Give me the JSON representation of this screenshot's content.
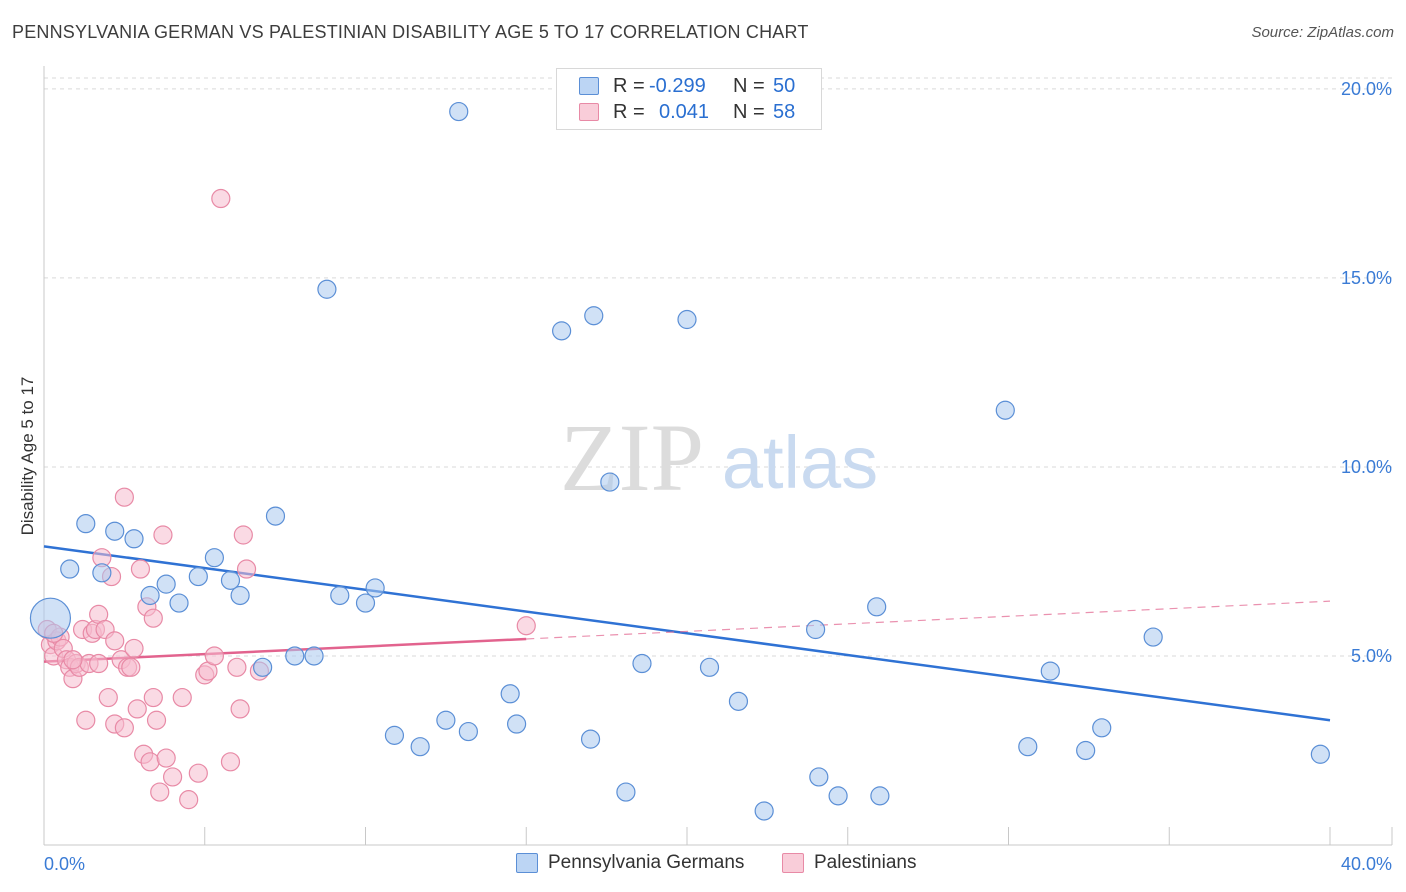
{
  "header": {
    "title": "PENNSYLVANIA GERMAN VS PALESTINIAN DISABILITY AGE 5 TO 17 CORRELATION CHART",
    "source": "Source: ZipAtlas.com"
  },
  "watermark": {
    "zip": "ZIP",
    "atlas": "atlas"
  },
  "stats_legend": {
    "rows": [
      {
        "r_label": "R =",
        "r_value": "-0.299",
        "n_label": "N =",
        "n_value": "50"
      },
      {
        "r_label": "R =",
        "r_value": "0.041",
        "n_label": "N =",
        "n_value": "58"
      }
    ]
  },
  "bottom_legend": {
    "items": [
      {
        "label": "Pennsylvania Germans"
      },
      {
        "label": "Palestinians"
      }
    ]
  },
  "colors": {
    "blue_fill": "#a9c9ef",
    "blue_stroke": "#5b8fd6",
    "blue_line": "#2f72d4",
    "pink_fill": "#f6bccd",
    "pink_stroke": "#e88aa6",
    "pink_line": "#e2638e",
    "grid": "#d9d9d9",
    "axis_text": "#3a7bd5"
  },
  "chart_data": {
    "type": "scatter",
    "title": "PENNSYLVANIA GERMAN VS PALESTINIAN DISABILITY AGE 5 TO 17 CORRELATION CHART",
    "xlabel": "",
    "ylabel": "Disability Age 5 to 17",
    "xlim": [
      0,
      40
    ],
    "ylim": [
      0,
      20.5
    ],
    "x_tick_labels": [
      "0.0%",
      "40.0%"
    ],
    "y_ticks": [
      5,
      10,
      15,
      20
    ],
    "y_tick_labels": [
      "5.0%",
      "10.0%",
      "15.0%",
      "20.0%"
    ],
    "grid": "horizontal dashed",
    "legend_position": "top-center",
    "series": [
      {
        "name": "Pennsylvania Germans",
        "color": "#5b8fd6",
        "points": [
          [
            0.2,
            6.0
          ],
          [
            0.8,
            7.3
          ],
          [
            1.3,
            8.5
          ],
          [
            2.2,
            8.3
          ],
          [
            1.8,
            7.2
          ],
          [
            2.8,
            8.1
          ],
          [
            3.3,
            6.6
          ],
          [
            3.8,
            6.9
          ],
          [
            4.2,
            6.4
          ],
          [
            4.8,
            7.1
          ],
          [
            5.3,
            7.6
          ],
          [
            5.8,
            7.0
          ],
          [
            6.1,
            6.6
          ],
          [
            7.2,
            8.7
          ],
          [
            6.8,
            4.7
          ],
          [
            7.8,
            5.0
          ],
          [
            8.4,
            5.0
          ],
          [
            8.8,
            14.7
          ],
          [
            9.2,
            6.6
          ],
          [
            10.0,
            6.4
          ],
          [
            10.3,
            6.8
          ],
          [
            10.9,
            2.9
          ],
          [
            11.7,
            2.6
          ],
          [
            12.5,
            3.3
          ],
          [
            12.9,
            19.4
          ],
          [
            13.2,
            3.0
          ],
          [
            14.5,
            4.0
          ],
          [
            14.7,
            3.2
          ],
          [
            16.1,
            13.6
          ],
          [
            17.0,
            2.8
          ],
          [
            17.1,
            14.0
          ],
          [
            17.6,
            9.6
          ],
          [
            18.1,
            1.4
          ],
          [
            18.6,
            4.8
          ],
          [
            20.0,
            13.9
          ],
          [
            20.7,
            4.7
          ],
          [
            21.6,
            3.8
          ],
          [
            22.4,
            0.9
          ],
          [
            24.0,
            5.7
          ],
          [
            24.1,
            1.8
          ],
          [
            24.7,
            1.3
          ],
          [
            25.9,
            6.3
          ],
          [
            26.0,
            1.3
          ],
          [
            29.9,
            11.5
          ],
          [
            30.6,
            2.6
          ],
          [
            31.3,
            4.6
          ],
          [
            32.4,
            2.5
          ],
          [
            32.9,
            3.1
          ],
          [
            34.5,
            5.5
          ],
          [
            39.7,
            2.4
          ]
        ],
        "trend": {
          "x": [
            0,
            40
          ],
          "y": [
            7.9,
            3.3
          ]
        }
      },
      {
        "name": "Palestinians",
        "color": "#e88aa6",
        "points": [
          [
            0.1,
            5.7
          ],
          [
            0.2,
            5.3
          ],
          [
            0.3,
            5.0
          ],
          [
            0.4,
            5.4
          ],
          [
            0.5,
            5.5
          ],
          [
            0.6,
            5.2
          ],
          [
            0.7,
            4.9
          ],
          [
            0.8,
            4.7
          ],
          [
            0.9,
            4.4
          ],
          [
            1.0,
            4.8
          ],
          [
            1.1,
            4.7
          ],
          [
            1.2,
            5.7
          ],
          [
            1.3,
            3.3
          ],
          [
            1.4,
            4.8
          ],
          [
            1.5,
            5.6
          ],
          [
            1.6,
            5.7
          ],
          [
            1.7,
            4.8
          ],
          [
            1.7,
            6.1
          ],
          [
            1.8,
            7.6
          ],
          [
            1.9,
            5.7
          ],
          [
            2.0,
            3.9
          ],
          [
            2.1,
            7.1
          ],
          [
            2.2,
            5.4
          ],
          [
            2.2,
            3.2
          ],
          [
            2.4,
            4.9
          ],
          [
            2.5,
            9.2
          ],
          [
            2.5,
            3.1
          ],
          [
            2.6,
            4.7
          ],
          [
            2.7,
            4.7
          ],
          [
            2.8,
            5.2
          ],
          [
            2.9,
            3.6
          ],
          [
            3.0,
            7.3
          ],
          [
            3.1,
            2.4
          ],
          [
            3.2,
            6.3
          ],
          [
            3.3,
            2.2
          ],
          [
            3.4,
            3.9
          ],
          [
            3.4,
            6.0
          ],
          [
            3.5,
            3.3
          ],
          [
            3.6,
            1.4
          ],
          [
            3.7,
            8.2
          ],
          [
            3.8,
            2.3
          ],
          [
            4.0,
            1.8
          ],
          [
            4.3,
            3.9
          ],
          [
            4.5,
            1.2
          ],
          [
            4.8,
            1.9
          ],
          [
            5.0,
            4.5
          ],
          [
            5.1,
            4.6
          ],
          [
            5.3,
            5.0
          ],
          [
            5.5,
            17.1
          ],
          [
            5.8,
            2.2
          ],
          [
            6.0,
            4.7
          ],
          [
            6.1,
            3.6
          ],
          [
            6.2,
            8.2
          ],
          [
            6.3,
            7.3
          ],
          [
            6.7,
            4.6
          ],
          [
            15.0,
            5.8
          ],
          [
            0.3,
            5.6
          ],
          [
            0.9,
            4.9
          ]
        ],
        "trend": {
          "x": [
            0,
            40
          ],
          "y": [
            4.85,
            6.45
          ]
        },
        "trend_solid_until_x": 15
      }
    ]
  }
}
